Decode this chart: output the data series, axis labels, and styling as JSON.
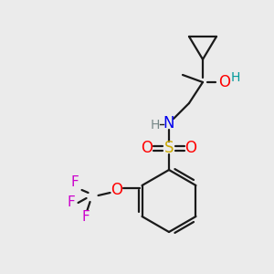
{
  "background_color": "#ebebeb",
  "bond_color": "#1a1a1a",
  "atom_colors": {
    "O": "#ff0000",
    "N": "#0000ee",
    "S": "#ccaa00",
    "F": "#cc00cc",
    "H_OH": "#009999",
    "H_NH": "#778888"
  },
  "figsize": [
    3.0,
    3.0
  ],
  "dpi": 100
}
